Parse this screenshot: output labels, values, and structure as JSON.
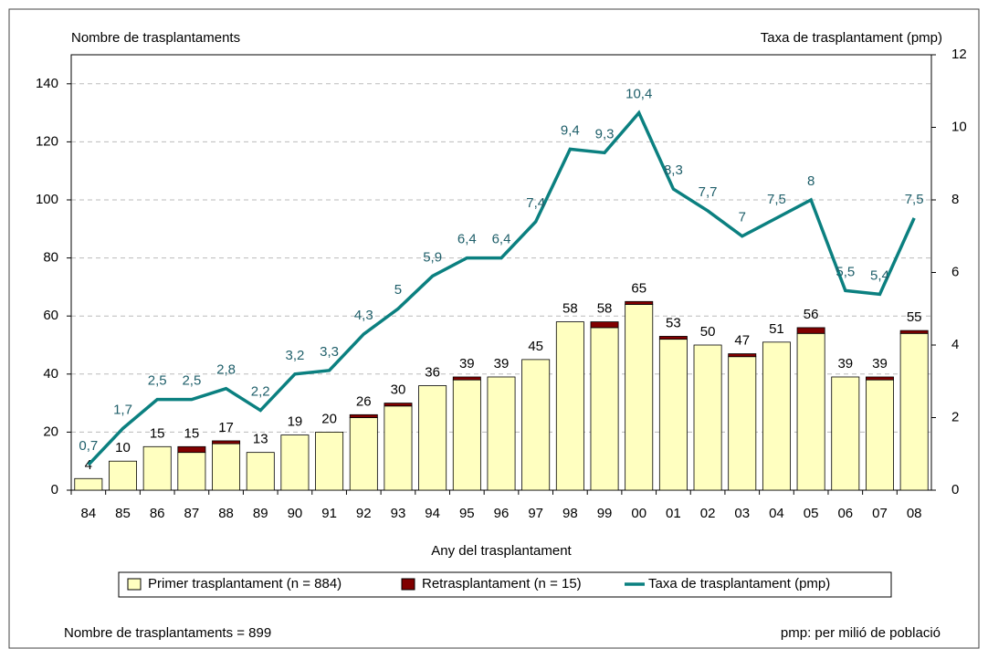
{
  "chart_data": {
    "type": "bar-line",
    "y_label": "Nombre de trasplantaments",
    "y2_label": "Taxa de trasplantament (pmp)",
    "x_label": "Any del trasplantament",
    "categories": [
      "84",
      "85",
      "86",
      "87",
      "88",
      "89",
      "90",
      "91",
      "92",
      "93",
      "94",
      "95",
      "96",
      "97",
      "98",
      "99",
      "00",
      "01",
      "02",
      "03",
      "04",
      "05",
      "06",
      "07",
      "08"
    ],
    "series": [
      {
        "name": "Primer trasplantament (n = 884)",
        "color": "#ffffc0",
        "type": "bar",
        "values": [
          4,
          10,
          15,
          13,
          16,
          13,
          19,
          20,
          25,
          29,
          36,
          38,
          39,
          45,
          58,
          56,
          64,
          52,
          50,
          46,
          51,
          54,
          39,
          38,
          54
        ]
      },
      {
        "name": "Retrasplantament (n = 15)",
        "color": "#800000",
        "type": "bar",
        "values": [
          0,
          0,
          0,
          2,
          1,
          0,
          0,
          0,
          1,
          1,
          0,
          1,
          0,
          0,
          0,
          2,
          1,
          1,
          0,
          1,
          0,
          2,
          0,
          1,
          1
        ]
      },
      {
        "name": "Taxa de trasplantament (pmp)",
        "color": "#0b8080",
        "type": "line",
        "axis": "y2",
        "values": [
          0.7,
          1.7,
          2.5,
          2.5,
          2.8,
          2.2,
          3.2,
          3.3,
          4.3,
          5,
          5.9,
          6.4,
          6.4,
          7.4,
          9.4,
          9.3,
          10.4,
          8.3,
          7.7,
          7,
          7.5,
          8,
          5.5,
          5.4,
          7.5
        ],
        "value_labels": [
          "0,7",
          "1,7",
          "2,5",
          "2,5",
          "2,8",
          "2,2",
          "3,2",
          "3,3",
          "4,3",
          "5",
          "5,9",
          "6,4",
          "6,4",
          "7,4",
          "9,4",
          "9,3",
          "10,4",
          "8,3",
          "7,7",
          "7",
          "7,5",
          "8",
          "5,5",
          "5,4",
          "7,5"
        ]
      }
    ],
    "totals": [
      4,
      10,
      15,
      15,
      17,
      13,
      19,
      20,
      26,
      30,
      36,
      39,
      39,
      45,
      58,
      58,
      65,
      53,
      50,
      47,
      51,
      56,
      39,
      39,
      55
    ],
    "ylim": [
      0,
      150
    ],
    "yticks": [
      0,
      20,
      40,
      60,
      80,
      100,
      120,
      140
    ],
    "y2lim": [
      0,
      12
    ],
    "y2ticks": [
      0,
      2,
      4,
      6,
      8,
      10,
      12
    ],
    "grid": true,
    "legend": "bottom",
    "footnotes": [
      "Nombre de trasplantaments = 899",
      "pmp: per milió de població"
    ]
  }
}
